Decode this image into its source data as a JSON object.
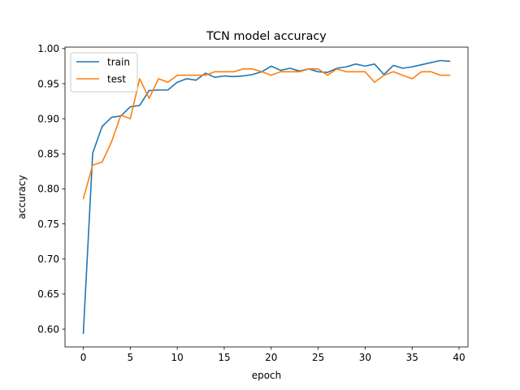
{
  "chart_data": {
    "type": "line",
    "title": "TCN model accuracy",
    "xlabel": "epoch",
    "ylabel": "accuracy",
    "xlim": [
      -1.95,
      40.95
    ],
    "ylim": [
      0.5746,
      1.0021
    ],
    "xticks": [
      0,
      5,
      10,
      15,
      20,
      25,
      30,
      35,
      40
    ],
    "yticks": [
      0.6,
      0.65,
      0.7,
      0.75,
      0.8,
      0.85,
      0.9,
      0.95,
      1.0
    ],
    "xtick_labels": [
      "0",
      "5",
      "10",
      "15",
      "20",
      "25",
      "30",
      "35",
      "40"
    ],
    "ytick_labels": [
      "0.60",
      "0.65",
      "0.70",
      "0.75",
      "0.80",
      "0.85",
      "0.90",
      "0.95",
      "1.00"
    ],
    "grid": false,
    "legend_position": "top-left",
    "x": [
      0,
      1,
      2,
      3,
      4,
      5,
      6,
      7,
      8,
      9,
      10,
      11,
      12,
      13,
      14,
      15,
      16,
      17,
      18,
      19,
      20,
      21,
      22,
      23,
      24,
      25,
      26,
      27,
      28,
      29,
      30,
      31,
      32,
      33,
      34,
      35,
      36,
      37,
      38,
      39
    ],
    "series": [
      {
        "name": "train",
        "color": "#1f77b4",
        "values": [
          0.594,
          0.851,
          0.889,
          0.902,
          0.904,
          0.917,
          0.919,
          0.94,
          0.941,
          0.941,
          0.952,
          0.957,
          0.955,
          0.965,
          0.959,
          0.961,
          0.96,
          0.961,
          0.963,
          0.967,
          0.975,
          0.969,
          0.972,
          0.968,
          0.971,
          0.967,
          0.966,
          0.972,
          0.974,
          0.978,
          0.975,
          0.978,
          0.963,
          0.976,
          0.972,
          0.974,
          0.977,
          0.98,
          0.983,
          0.982
        ]
      },
      {
        "name": "test",
        "color": "#ff7f0e",
        "values": [
          0.786,
          0.834,
          0.838,
          0.867,
          0.905,
          0.9,
          0.957,
          0.929,
          0.957,
          0.952,
          0.962,
          0.962,
          0.962,
          0.962,
          0.967,
          0.967,
          0.967,
          0.971,
          0.971,
          0.967,
          0.962,
          0.967,
          0.967,
          0.967,
          0.971,
          0.971,
          0.962,
          0.971,
          0.967,
          0.967,
          0.967,
          0.952,
          0.962,
          0.967,
          0.962,
          0.957,
          0.967,
          0.967,
          0.962,
          0.962
        ]
      }
    ]
  }
}
